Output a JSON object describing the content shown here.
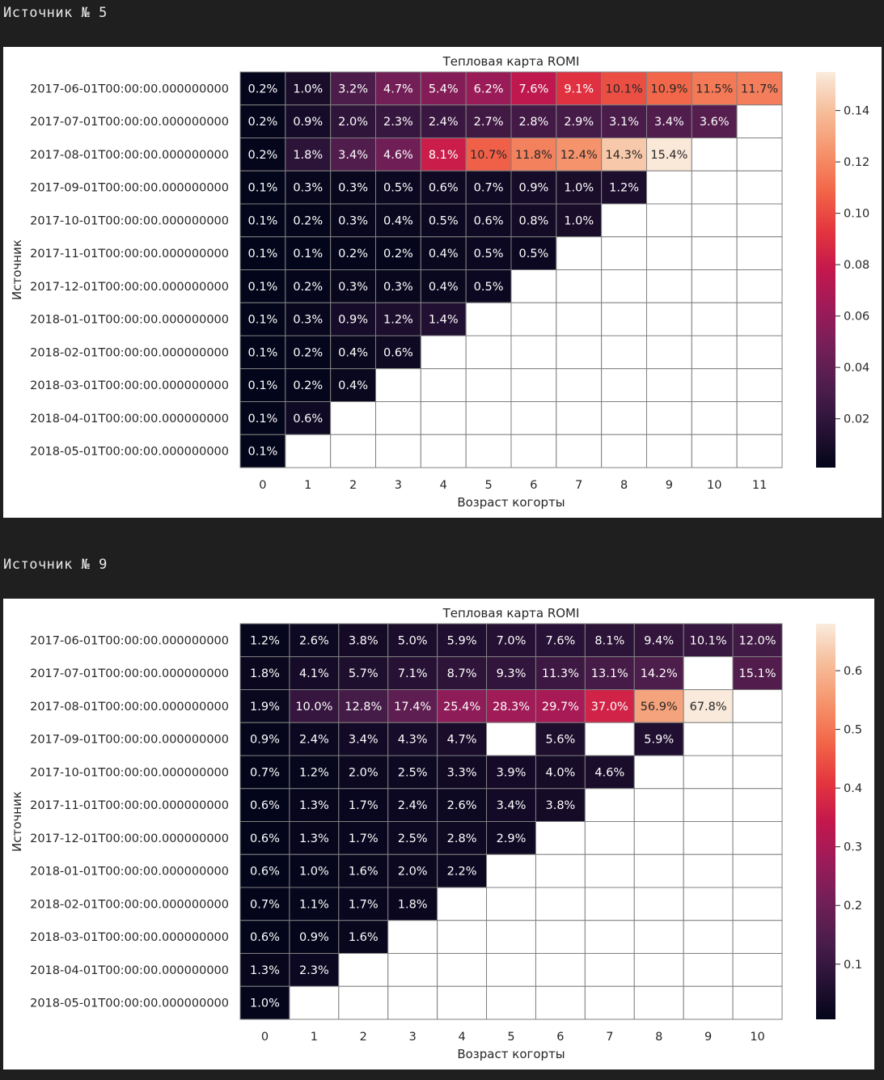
{
  "outputs": [
    {
      "heading": "Источник № 5"
    },
    {
      "heading": "Источник № 9"
    }
  ],
  "chart_data": [
    {
      "type": "heatmap",
      "title": "Тепловая карта ROMI",
      "xlabel": "Возраст когорты",
      "ylabel": "Источник",
      "rows": [
        "2017-06-01T00:00:00.000000000",
        "2017-07-01T00:00:00.000000000",
        "2017-08-01T00:00:00.000000000",
        "2017-09-01T00:00:00.000000000",
        "2017-10-01T00:00:00.000000000",
        "2017-11-01T00:00:00.000000000",
        "2017-12-01T00:00:00.000000000",
        "2018-01-01T00:00:00.000000000",
        "2018-02-01T00:00:00.000000000",
        "2018-03-01T00:00:00.000000000",
        "2018-04-01T00:00:00.000000000",
        "2018-05-01T00:00:00.000000000"
      ],
      "columns": [
        "0",
        "1",
        "2",
        "3",
        "4",
        "5",
        "6",
        "7",
        "8",
        "9",
        "10",
        "11"
      ],
      "values": [
        [
          0.002,
          0.01,
          0.032,
          0.047,
          0.054,
          0.062,
          0.076,
          0.091,
          0.101,
          0.109,
          0.115,
          0.117
        ],
        [
          0.002,
          0.009,
          0.02,
          0.023,
          0.024,
          0.027,
          0.028,
          0.029,
          0.031,
          0.034,
          0.036,
          null
        ],
        [
          0.002,
          0.018,
          0.034,
          0.046,
          0.081,
          0.107,
          0.118,
          0.124,
          0.143,
          0.154,
          null,
          null
        ],
        [
          0.001,
          0.003,
          0.003,
          0.005,
          0.006,
          0.007,
          0.009,
          0.01,
          0.012,
          null,
          null,
          null
        ],
        [
          0.001,
          0.002,
          0.003,
          0.004,
          0.005,
          0.006,
          0.008,
          0.01,
          null,
          null,
          null,
          null
        ],
        [
          0.001,
          0.001,
          0.002,
          0.002,
          0.004,
          0.005,
          0.005,
          null,
          null,
          null,
          null,
          null
        ],
        [
          0.001,
          0.002,
          0.003,
          0.003,
          0.004,
          0.005,
          null,
          null,
          null,
          null,
          null,
          null
        ],
        [
          0.001,
          0.003,
          0.009,
          0.012,
          0.014,
          null,
          null,
          null,
          null,
          null,
          null,
          null
        ],
        [
          0.001,
          0.002,
          0.004,
          0.006,
          null,
          null,
          null,
          null,
          null,
          null,
          null,
          null
        ],
        [
          0.001,
          0.002,
          0.004,
          null,
          null,
          null,
          null,
          null,
          null,
          null,
          null,
          null
        ],
        [
          0.001,
          0.006,
          null,
          null,
          null,
          null,
          null,
          null,
          null,
          null,
          null,
          null
        ],
        [
          0.001,
          null,
          null,
          null,
          null,
          null,
          null,
          null,
          null,
          null,
          null,
          null
        ]
      ],
      "labels": [
        [
          "0.2%",
          "1.0%",
          "3.2%",
          "4.7%",
          "5.4%",
          "6.2%",
          "7.6%",
          "9.1%",
          "10.1%",
          "10.9%",
          "11.5%",
          "11.7%"
        ],
        [
          "0.2%",
          "0.9%",
          "2.0%",
          "2.3%",
          "2.4%",
          "2.7%",
          "2.8%",
          "2.9%",
          "3.1%",
          "3.4%",
          "3.6%",
          ""
        ],
        [
          "0.2%",
          "1.8%",
          "3.4%",
          "4.6%",
          "8.1%",
          "10.7%",
          "11.8%",
          "12.4%",
          "14.3%",
          "15.4%",
          "",
          ""
        ],
        [
          "0.1%",
          "0.3%",
          "0.3%",
          "0.5%",
          "0.6%",
          "0.7%",
          "0.9%",
          "1.0%",
          "1.2%",
          "",
          "",
          ""
        ],
        [
          "0.1%",
          "0.2%",
          "0.3%",
          "0.4%",
          "0.5%",
          "0.6%",
          "0.8%",
          "1.0%",
          "",
          "",
          "",
          ""
        ],
        [
          "0.1%",
          "0.1%",
          "0.2%",
          "0.2%",
          "0.4%",
          "0.5%",
          "0.5%",
          "",
          "",
          "",
          "",
          ""
        ],
        [
          "0.1%",
          "0.2%",
          "0.3%",
          "0.3%",
          "0.4%",
          "0.5%",
          "",
          "",
          "",
          "",
          "",
          ""
        ],
        [
          "0.1%",
          "0.3%",
          "0.9%",
          "1.2%",
          "1.4%",
          "",
          "",
          "",
          "",
          "",
          "",
          ""
        ],
        [
          "0.1%",
          "0.2%",
          "0.4%",
          "0.6%",
          "",
          "",
          "",
          "",
          "",
          "",
          "",
          ""
        ],
        [
          "0.1%",
          "0.2%",
          "0.4%",
          "",
          "",
          "",
          "",
          "",
          "",
          "",
          "",
          ""
        ],
        [
          "0.1%",
          "0.6%",
          "",
          "",
          "",
          "",
          "",
          "",
          "",
          "",
          "",
          ""
        ],
        [
          "0.1%",
          "",
          "",
          "",
          "",
          "",
          "",
          "",
          "",
          "",
          "",
          ""
        ]
      ],
      "colorbar": {
        "range": [
          0.001,
          0.155
        ],
        "ticks": [
          0.02,
          0.04,
          0.06,
          0.08,
          0.1,
          0.12,
          0.14
        ],
        "tick_labels": [
          "0.02",
          "0.04",
          "0.06",
          "0.08",
          "0.10",
          "0.12",
          "0.14"
        ],
        "colormap": "rocket"
      }
    },
    {
      "type": "heatmap",
      "title": "Тепловая карта ROMI",
      "xlabel": "Возраст когорты",
      "ylabel": "Источник",
      "rows": [
        "2017-06-01T00:00:00.000000000",
        "2017-07-01T00:00:00.000000000",
        "2017-08-01T00:00:00.000000000",
        "2017-09-01T00:00:00.000000000",
        "2017-10-01T00:00:00.000000000",
        "2017-11-01T00:00:00.000000000",
        "2017-12-01T00:00:00.000000000",
        "2018-01-01T00:00:00.000000000",
        "2018-02-01T00:00:00.000000000",
        "2018-03-01T00:00:00.000000000",
        "2018-04-01T00:00:00.000000000",
        "2018-05-01T00:00:00.000000000"
      ],
      "columns": [
        "0",
        "1",
        "2",
        "3",
        "4",
        "5",
        "6",
        "7",
        "8",
        "9",
        "10"
      ],
      "values": [
        [
          0.012,
          0.026,
          0.038,
          0.05,
          0.059,
          0.07,
          0.076,
          0.081,
          0.094,
          0.101,
          0.12
        ],
        [
          0.018,
          0.041,
          0.057,
          0.071,
          0.087,
          0.093,
          0.113,
          0.131,
          0.142,
          null,
          0.151
        ],
        [
          0.019,
          0.1,
          0.128,
          0.174,
          0.254,
          0.283,
          0.297,
          0.37,
          0.569,
          0.678,
          null
        ],
        [
          0.009,
          0.024,
          0.034,
          0.043,
          0.047,
          null,
          0.056,
          null,
          0.059,
          null,
          null
        ],
        [
          0.007,
          0.012,
          0.02,
          0.025,
          0.033,
          0.039,
          0.04,
          0.046,
          null,
          null,
          null
        ],
        [
          0.006,
          0.013,
          0.017,
          0.024,
          0.026,
          0.034,
          0.038,
          null,
          null,
          null,
          null
        ],
        [
          0.006,
          0.013,
          0.017,
          0.025,
          0.028,
          0.029,
          null,
          null,
          null,
          null,
          null
        ],
        [
          0.006,
          0.01,
          0.016,
          0.02,
          0.022,
          null,
          null,
          null,
          null,
          null,
          null
        ],
        [
          0.007,
          0.011,
          0.017,
          0.018,
          null,
          null,
          null,
          null,
          null,
          null,
          null
        ],
        [
          0.006,
          0.009,
          0.016,
          null,
          null,
          null,
          null,
          null,
          null,
          null,
          null
        ],
        [
          0.013,
          0.023,
          null,
          null,
          null,
          null,
          null,
          null,
          null,
          null,
          null
        ],
        [
          0.01,
          null,
          null,
          null,
          null,
          null,
          null,
          null,
          null,
          null,
          null
        ]
      ],
      "labels": [
        [
          "1.2%",
          "2.6%",
          "3.8%",
          "5.0%",
          "5.9%",
          "7.0%",
          "7.6%",
          "8.1%",
          "9.4%",
          "10.1%",
          "12.0%"
        ],
        [
          "1.8%",
          "4.1%",
          "5.7%",
          "7.1%",
          "8.7%",
          "9.3%",
          "11.3%",
          "13.1%",
          "14.2%",
          "",
          "15.1%"
        ],
        [
          "1.9%",
          "10.0%",
          "12.8%",
          "17.4%",
          "25.4%",
          "28.3%",
          "29.7%",
          "37.0%",
          "56.9%",
          "67.8%",
          ""
        ],
        [
          "0.9%",
          "2.4%",
          "3.4%",
          "4.3%",
          "4.7%",
          "",
          "5.6%",
          "",
          "5.9%",
          "",
          ""
        ],
        [
          "0.7%",
          "1.2%",
          "2.0%",
          "2.5%",
          "3.3%",
          "3.9%",
          "4.0%",
          "4.6%",
          "",
          "",
          ""
        ],
        [
          "0.6%",
          "1.3%",
          "1.7%",
          "2.4%",
          "2.6%",
          "3.4%",
          "3.8%",
          "",
          "",
          "",
          ""
        ],
        [
          "0.6%",
          "1.3%",
          "1.7%",
          "2.5%",
          "2.8%",
          "2.9%",
          "",
          "",
          "",
          "",
          ""
        ],
        [
          "0.6%",
          "1.0%",
          "1.6%",
          "2.0%",
          "2.2%",
          "",
          "",
          "",
          "",
          "",
          ""
        ],
        [
          "0.7%",
          "1.1%",
          "1.7%",
          "1.8%",
          "",
          "",
          "",
          "",
          "",
          "",
          ""
        ],
        [
          "0.6%",
          "0.9%",
          "1.6%",
          "",
          "",
          "",
          "",
          "",
          "",
          "",
          ""
        ],
        [
          "1.3%",
          "2.3%",
          "",
          "",
          "",
          "",
          "",
          "",
          "",
          "",
          ""
        ],
        [
          "1.0%",
          "",
          "",
          "",
          "",
          "",
          "",
          "",
          "",
          "",
          ""
        ]
      ],
      "colorbar": {
        "range": [
          0.006,
          0.68
        ],
        "ticks": [
          0.1,
          0.2,
          0.3,
          0.4,
          0.5,
          0.6
        ],
        "tick_labels": [
          "0.1",
          "0.2",
          "0.3",
          "0.4",
          "0.5",
          "0.6"
        ],
        "colormap": "rocket"
      }
    }
  ]
}
